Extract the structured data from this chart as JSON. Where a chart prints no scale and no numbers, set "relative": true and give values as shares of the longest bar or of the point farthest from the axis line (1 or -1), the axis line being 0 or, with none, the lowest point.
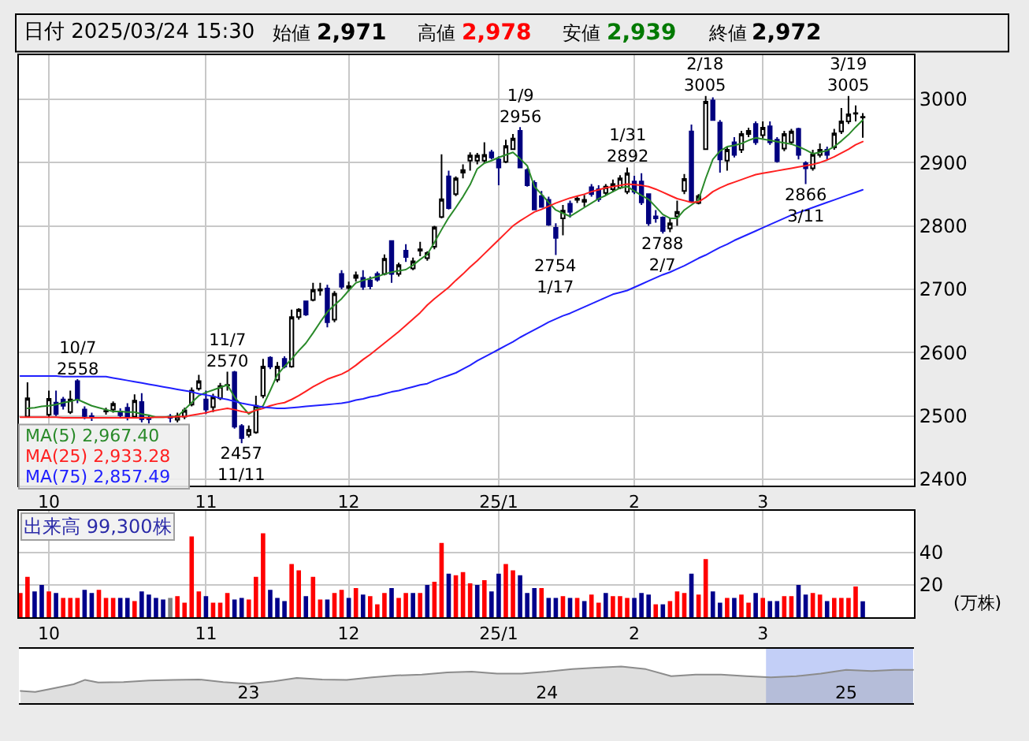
{
  "chart_data": [
    {
      "type": "other",
      "title": "日付 2025/03/24 15:30",
      "categories": [
        "始値",
        "高値",
        "安値",
        "終値"
      ],
      "values": [
        2971,
        2978,
        2939,
        2972
      ],
      "value_labels": [
        "2,971",
        "2,978",
        "2,939",
        "2,972"
      ],
      "colors": [
        "#000000",
        "#ff0000",
        "#007a00",
        "#000000"
      ]
    },
    {
      "type": "candlestick",
      "categories": [
        null,
        null,
        null,
        null,
        "10",
        null,
        null,
        null,
        null,
        null,
        null,
        null,
        null,
        null,
        null,
        null,
        null,
        null,
        null,
        null,
        null,
        null,
        null,
        null,
        null,
        null,
        "11",
        null,
        null,
        null,
        null,
        null,
        null,
        null,
        null,
        null,
        null,
        null,
        null,
        null,
        null,
        null,
        null,
        null,
        null,
        null,
        "12",
        null,
        null,
        null,
        null,
        null,
        null,
        null,
        null,
        null,
        null,
        null,
        null,
        null,
        null,
        null,
        null,
        null,
        null,
        null,
        null,
        "25/1",
        null,
        null,
        null,
        null,
        null,
        null,
        null,
        null,
        null,
        null,
        null,
        null,
        null,
        null,
        null,
        null,
        null,
        null,
        "2",
        null,
        null,
        null,
        null,
        null,
        null,
        null,
        null,
        null,
        null,
        null,
        null,
        null,
        null,
        null,
        null,
        null,
        "3",
        null,
        null,
        null,
        null,
        null,
        null,
        null,
        null,
        null,
        null,
        null,
        null,
        null,
        null
      ],
      "ohlc": [
        null,
        [
          2499,
          2553,
          2497,
          2528
        ],
        null,
        null,
        [
          2502,
          2540,
          2498,
          2527
        ],
        [
          2521,
          2540,
          2500,
          2503
        ],
        [
          2526,
          2530,
          2510,
          2516
        ],
        [
          2506,
          2540,
          2503,
          2526
        ],
        [
          2555,
          2558,
          2520,
          2526
        ],
        [
          2510,
          2515,
          2495,
          2500
        ],
        [
          2500,
          2505,
          2492,
          2499
        ],
        null,
        [
          2507,
          2513,
          2502,
          2508
        ],
        [
          2510,
          2523,
          2505,
          2519
        ],
        [
          2507,
          2512,
          2497,
          2501
        ],
        [
          2513,
          2520,
          2493,
          2497
        ],
        [
          2499,
          2534,
          2497,
          2524
        ],
        [
          2522,
          2536,
          2490,
          2495
        ],
        [
          2497,
          2502,
          2488,
          2495
        ],
        null,
        null,
        [
          2499,
          2503,
          2490,
          2497
        ],
        [
          2494,
          2505,
          2490,
          2500
        ],
        [
          2499,
          2513,
          2495,
          2509
        ],
        [
          2518,
          2545,
          2515,
          2540
        ],
        [
          2543,
          2565,
          2540,
          2555
        ],
        [
          2526,
          2540,
          2503,
          2510
        ],
        [
          2514,
          2535,
          2506,
          2530
        ],
        [
          2528,
          2552,
          2525,
          2547
        ],
        [
          2548,
          2570,
          2540,
          2549
        ],
        [
          2569,
          2571,
          2480,
          2483
        ],
        [
          2484,
          2487,
          2457,
          2465
        ],
        [
          2470,
          2485,
          2466,
          2478
        ],
        [
          2474,
          2532,
          2472,
          2516
        ],
        [
          2532,
          2590,
          2528,
          2578
        ],
        [
          2592,
          2594,
          2574,
          2578
        ],
        [
          2557,
          2585,
          2553,
          2578
        ],
        [
          2590,
          2594,
          2575,
          2578
        ],
        [
          2578,
          2668,
          2576,
          2656
        ],
        [
          2656,
          2670,
          2652,
          2668
        ],
        [
          2681,
          2682,
          2658,
          2660
        ],
        [
          2683,
          2710,
          2681,
          2699
        ],
        [
          2698,
          2710,
          2690,
          2700
        ],
        [
          2701,
          2707,
          2640,
          2648
        ],
        [
          2652,
          2697,
          2648,
          2693
        ],
        [
          2724,
          2730,
          2700,
          2704
        ],
        [
          2702,
          2712,
          2697,
          2705
        ],
        [
          2718,
          2728,
          2712,
          2722
        ],
        [
          2718,
          2730,
          2699,
          2704
        ],
        [
          2714,
          2720,
          2700,
          2705
        ],
        [
          2724,
          2728,
          2712,
          2715
        ],
        [
          2724,
          2755,
          2722,
          2748
        ],
        [
          2776,
          2777,
          2710,
          2724
        ],
        [
          2724,
          2742,
          2720,
          2738
        ],
        [
          2761,
          2771,
          2743,
          2751
        ],
        [
          2733,
          2750,
          2730,
          2744
        ],
        [
          2761,
          2775,
          2752,
          2763
        ],
        [
          2749,
          2760,
          2745,
          2757
        ],
        [
          2767,
          2800,
          2763,
          2798
        ],
        [
          2814,
          2913,
          2812,
          2842
        ],
        [
          2878,
          2887,
          2826,
          2828
        ],
        [
          2850,
          2878,
          2847,
          2875
        ],
        [
          2884,
          2897,
          2875,
          2888
        ],
        [
          2903,
          2916,
          2887,
          2911
        ],
        [
          2903,
          2915,
          2897,
          2911
        ],
        [
          2903,
          2932,
          2899,
          2912
        ],
        [
          2916,
          2920,
          2905,
          2908
        ],
        [
          2905,
          2910,
          2864,
          2892
        ],
        [
          2901,
          2936,
          2899,
          2926
        ],
        [
          2921,
          2945,
          2920,
          2938
        ],
        [
          2950,
          2956,
          2892,
          2892
        ],
        [
          2888,
          2891,
          2862,
          2864
        ],
        [
          2868,
          2872,
          2825,
          2826
        ],
        [
          2847,
          2855,
          2830,
          2830
        ],
        [
          2841,
          2846,
          2800,
          2802
        ],
        [
          2797,
          2804,
          2754,
          2781
        ],
        [
          2812,
          2833,
          2785,
          2824
        ],
        [
          2835,
          2840,
          2813,
          2822
        ],
        [
          2841,
          2848,
          2836,
          2843
        ],
        [
          2838,
          2849,
          2830,
          2841
        ],
        [
          2861,
          2866,
          2846,
          2850
        ],
        [
          2858,
          2864,
          2838,
          2842
        ],
        [
          2852,
          2866,
          2848,
          2862
        ],
        [
          2858,
          2873,
          2853,
          2866
        ],
        [
          2860,
          2880,
          2858,
          2875
        ],
        [
          2854,
          2892,
          2850,
          2883
        ],
        [
          2870,
          2879,
          2850,
          2854
        ],
        [
          2870,
          2883,
          2833,
          2837
        ],
        [
          2850,
          2850,
          2800,
          2804
        ],
        [
          2815,
          2825,
          2805,
          2812
        ],
        [
          2813,
          2815,
          2788,
          2792
        ],
        [
          2796,
          2812,
          2790,
          2804
        ],
        [
          2815,
          2840,
          2800,
          2822
        ],
        [
          2855,
          2882,
          2850,
          2874
        ],
        [
          2949,
          2960,
          2839,
          2839
        ],
        [
          2836,
          2850,
          2834,
          2847
        ],
        [
          2921,
          3005,
          2920,
          2996
        ],
        [
          2998,
          3003,
          2967,
          2967
        ],
        [
          2963,
          2967,
          2884,
          2905
        ],
        [
          2903,
          2924,
          2887,
          2920
        ],
        [
          2932,
          2940,
          2908,
          2912
        ],
        [
          2920,
          2950,
          2915,
          2945
        ],
        [
          2945,
          2955,
          2940,
          2950
        ],
        [
          2961,
          2965,
          2928,
          2932
        ],
        [
          2943,
          2965,
          2938,
          2955
        ],
        [
          2957,
          2965,
          2928,
          2932
        ],
        [
          2936,
          2940,
          2900,
          2902
        ],
        [
          2922,
          2950,
          2918,
          2945
        ],
        [
          2932,
          2953,
          2928,
          2949
        ],
        [
          2953,
          2955,
          2905,
          2912
        ],
        [
          2899,
          2902,
          2866,
          2891
        ],
        [
          2891,
          2920,
          2887,
          2913
        ],
        [
          2912,
          2930,
          2908,
          2920
        ],
        [
          2920,
          2925,
          2905,
          2912
        ],
        [
          2924,
          2953,
          2920,
          2946
        ],
        [
          2949,
          2986,
          2945,
          2965
        ],
        [
          2965,
          3005,
          2961,
          2976
        ],
        [
          2977,
          2990,
          2965,
          2978
        ],
        [
          2971,
          2978,
          2939,
          2972
        ]
      ],
      "series": [
        {
          "type": "line",
          "name": "MA(5) 2,967.40",
          "color": "#2a8a2a",
          "values": [
            null,
            2512,
            2513,
            2515,
            2516,
            2518,
            2521,
            2523,
            2526,
            2521,
            2516,
            2513,
            2510,
            2507,
            2507,
            2506,
            2506,
            2503,
            2501,
            2498,
            2498,
            2499,
            2499,
            2510,
            2521,
            2532,
            2537,
            2541,
            2545,
            2549,
            2530,
            2516,
            2503,
            2510,
            2516,
            2540,
            2565,
            2578,
            2590,
            2603,
            2615,
            2631,
            2648,
            2664,
            2675,
            2685,
            2698,
            2710,
            2714,
            2717,
            2720,
            2724,
            2727,
            2729,
            2731,
            2738,
            2747,
            2755,
            2774,
            2794,
            2813,
            2829,
            2846,
            2865,
            2890,
            2899,
            2903,
            2908,
            2912,
            2916,
            2906,
            2895,
            2862,
            2850,
            2837,
            2825,
            2820,
            2815,
            2822,
            2829,
            2836,
            2843,
            2848,
            2854,
            2860,
            2862,
            2855,
            2848,
            2842,
            2830,
            2818,
            2812,
            2812,
            2825,
            2833,
            2841,
            2875,
            2905,
            2918,
            2925,
            2927,
            2930,
            2935,
            2939,
            2937,
            2935,
            2933,
            2931,
            2929,
            2925,
            2920,
            2914,
            2916,
            2919,
            2925,
            2934,
            2944,
            2956,
            2967
          ]
        },
        {
          "type": "line",
          "name": "MA(25) 2,933.28",
          "color": "#ff2020",
          "values": [
            2498,
            2498,
            2498,
            2498,
            2498,
            2498,
            2497,
            2497,
            2497,
            2497,
            2497,
            2497,
            2497,
            2497,
            2497,
            2497,
            2497,
            2497,
            2497,
            2498,
            2498,
            2498,
            2499,
            2499,
            2501,
            2503,
            2505,
            2508,
            2510,
            2512,
            2510,
            2507,
            2505,
            2509,
            2512,
            2516,
            2519,
            2521,
            2526,
            2532,
            2539,
            2546,
            2552,
            2558,
            2562,
            2566,
            2572,
            2580,
            2589,
            2597,
            2606,
            2615,
            2624,
            2633,
            2643,
            2653,
            2663,
            2675,
            2685,
            2694,
            2703,
            2714,
            2724,
            2735,
            2745,
            2756,
            2767,
            2778,
            2789,
            2800,
            2808,
            2815,
            2822,
            2826,
            2831,
            2836,
            2840,
            2844,
            2847,
            2850,
            2854,
            2857,
            2860,
            2862,
            2864,
            2866,
            2865,
            2864,
            2862,
            2858,
            2853,
            2848,
            2843,
            2840,
            2837,
            2838,
            2845,
            2854,
            2860,
            2865,
            2869,
            2873,
            2877,
            2881,
            2883,
            2885,
            2887,
            2889,
            2891,
            2893,
            2895,
            2897,
            2900,
            2904,
            2909,
            2915,
            2921,
            2928,
            2933
          ]
        },
        {
          "type": "line",
          "name": "MA(75) 2,857.49",
          "color": "#2020ff",
          "values": [
            2563,
            2563,
            2563,
            2563,
            2563,
            2563,
            2562,
            2562,
            2562,
            2562,
            2562,
            2562,
            2562,
            2560,
            2558,
            2556,
            2554,
            2552,
            2550,
            2548,
            2546,
            2544,
            2542,
            2540,
            2538,
            2535,
            2533,
            2531,
            2528,
            2526,
            2523,
            2520,
            2518,
            2516,
            2514,
            2513,
            2512,
            2512,
            2513,
            2514,
            2515,
            2516,
            2517,
            2518,
            2519,
            2520,
            2522,
            2525,
            2527,
            2530,
            2532,
            2535,
            2538,
            2540,
            2543,
            2546,
            2549,
            2551,
            2556,
            2560,
            2564,
            2568,
            2574,
            2580,
            2587,
            2593,
            2599,
            2605,
            2611,
            2617,
            2624,
            2630,
            2636,
            2642,
            2648,
            2653,
            2658,
            2662,
            2667,
            2672,
            2677,
            2682,
            2687,
            2692,
            2695,
            2698,
            2703,
            2708,
            2713,
            2718,
            2723,
            2727,
            2732,
            2737,
            2743,
            2749,
            2754,
            2760,
            2766,
            2771,
            2777,
            2782,
            2787,
            2792,
            2797,
            2802,
            2807,
            2812,
            2817,
            2821,
            2825,
            2829,
            2833,
            2837,
            2841,
            2845,
            2849,
            2853,
            2857
          ]
        }
      ],
      "ylim": [
        2390,
        3070
      ],
      "yticks": [
        2400,
        2500,
        2600,
        2700,
        2800,
        2900,
        3000
      ],
      "grid": true,
      "legend": "bottom left",
      "annotations": [
        {
          "text": "10/7\n2558",
          "y": 2558
        },
        {
          "text": "11/7\n2570",
          "y": 2570
        },
        {
          "text": "2457\n11/11",
          "y": 2457
        },
        {
          "text": "1/9\n2956",
          "y": 2956
        },
        {
          "text": "2754\n1/17",
          "y": 2754
        },
        {
          "text": "1/31\n2892",
          "y": 2892
        },
        {
          "text": "2788\n2/7",
          "y": 2788
        },
        {
          "text": "2/18\n3005",
          "y": 3005
        },
        {
          "text": "2866\n3/11",
          "y": 2866
        },
        {
          "text": "3/19\n3005",
          "y": 3005
        }
      ]
    },
    {
      "type": "bar",
      "title": "出来高 99,300株",
      "ylabel": "(万株)",
      "categories": [
        null,
        null,
        null,
        null,
        "10",
        null,
        null,
        null,
        null,
        null,
        null,
        null,
        null,
        null,
        null,
        null,
        null,
        null,
        null,
        null,
        null,
        null,
        null,
        null,
        null,
        null,
        "11",
        null,
        null,
        null,
        null,
        null,
        null,
        null,
        null,
        null,
        null,
        null,
        null,
        null,
        null,
        null,
        null,
        null,
        null,
        null,
        "12",
        null,
        null,
        null,
        null,
        null,
        null,
        null,
        null,
        null,
        null,
        null,
        null,
        null,
        null,
        null,
        null,
        null,
        null,
        null,
        null,
        "25/1",
        null,
        null,
        null,
        null,
        null,
        null,
        null,
        null,
        null,
        null,
        null,
        null,
        null,
        null,
        null,
        null,
        null,
        null,
        "2",
        null,
        null,
        null,
        null,
        null,
        null,
        null,
        null,
        null,
        null,
        null,
        null,
        null,
        null,
        null,
        null,
        null,
        "3",
        null,
        null,
        null,
        null,
        null,
        null,
        null,
        null,
        null,
        null,
        null,
        null,
        null,
        null
      ],
      "values": [
        15,
        25,
        16,
        20,
        16,
        15,
        12,
        12,
        12,
        17,
        15,
        17,
        12,
        12,
        12,
        12,
        10,
        16,
        14,
        12,
        11,
        12,
        13,
        9,
        50,
        16,
        13,
        9,
        9,
        15,
        11,
        12,
        11,
        25,
        52,
        17,
        12,
        10,
        33,
        29,
        13,
        25,
        11,
        11,
        15,
        17,
        12,
        18,
        14,
        13,
        8,
        15,
        18,
        12,
        15,
        15,
        15,
        20,
        22,
        46,
        27,
        26,
        28,
        21,
        20,
        23,
        16,
        27,
        33,
        29,
        26,
        15,
        18,
        18,
        12,
        12,
        13,
        12,
        12,
        10,
        14,
        9,
        15,
        13,
        13,
        12,
        12,
        15,
        14,
        8,
        8,
        10,
        16,
        15,
        27,
        14,
        36,
        16,
        9,
        12,
        12,
        14,
        9,
        15,
        12,
        10,
        10,
        13,
        13,
        20,
        14,
        15,
        14,
        10,
        12,
        12,
        12,
        19,
        9.93
      ],
      "colors": [
        "#ff0000",
        "#ff0000",
        "#00008b",
        "#00008b",
        "#ff0000",
        "#00008b",
        "#ff0000",
        "#ff0000",
        "#ff0000",
        "#00008b",
        "#00008b",
        "#ff0000",
        "#ff0000",
        "#ff0000",
        "#00008b",
        "#00008b",
        "#ff0000",
        "#00008b",
        "#00008b",
        "#00008b",
        "#00008b",
        "#808080",
        "#ff0000",
        "#ff0000",
        "#ff0000",
        "#ff0000",
        "#00008b",
        "#ff0000",
        "#ff0000",
        "#ff0000",
        "#00008b",
        "#00008b",
        "#ff0000",
        "#ff0000",
        "#ff0000",
        "#00008b",
        "#00008b",
        "#00008b",
        "#ff0000",
        "#ff0000",
        "#00008b",
        "#ff0000",
        "#ff0000",
        "#00008b",
        "#ff0000",
        "#ff0000",
        "#00008b",
        "#ff0000",
        "#00008b",
        "#ff0000",
        "#ff0000",
        "#ff0000",
        "#00008b",
        "#ff0000",
        "#ff0000",
        "#00008b",
        "#ff0000",
        "#00008b",
        "#ff0000",
        "#ff0000",
        "#00008b",
        "#ff0000",
        "#ff0000",
        "#ff0000",
        "#00008b",
        "#ff0000",
        "#00008b",
        "#00008b",
        "#ff0000",
        "#ff0000",
        "#00008b",
        "#00008b",
        "#00008b",
        "#ff0000",
        "#00008b",
        "#00008b",
        "#ff0000",
        "#00008b",
        "#ff0000",
        "#00008b",
        "#ff0000",
        "#ff0000",
        "#00008b",
        "#ff0000",
        "#ff0000",
        "#ff0000",
        "#00008b",
        "#00008b",
        "#00008b",
        "#ff0000",
        "#00008b",
        "#ff0000",
        "#ff0000",
        "#ff0000",
        "#00008b",
        "#ff0000",
        "#ff0000",
        "#00008b",
        "#00008b",
        "#ff0000",
        "#00008b",
        "#ff0000",
        "#ff0000",
        "#00008b",
        "#ff0000",
        "#00008b",
        "#00008b",
        "#ff0000",
        "#ff0000",
        "#00008b",
        "#00008b",
        "#ff0000",
        "#ff0000",
        "#00008b",
        "#ff0000",
        "#ff0000",
        "#ff0000",
        "#ff0000",
        "#00008b"
      ],
      "ylim": [
        0,
        66
      ],
      "yticks": [
        20,
        40
      ],
      "grid": true
    },
    {
      "type": "area",
      "relative": true,
      "color": "#8c8c8c",
      "tick_labels": "x",
      "x": [
        "2022-03-28",
        "2022-04-15",
        "2022-05-01",
        "2022-06-01",
        "2022-06-15",
        "2022-07-01",
        "2022-08-01",
        "2022-09-01",
        "2022-10-01",
        "2022-11-01",
        "2022-12-01",
        "2023-01-01",
        "2023-02-01",
        "2023-03-01",
        "2023-04-01",
        "2023-05-01",
        "2023-06-01",
        "2023-07-01",
        "2023-08-01",
        "2023-09-01",
        "2023-10-01",
        "2023-11-01",
        "2023-12-01",
        "2024-01-01",
        "2024-02-01",
        "2024-03-01",
        "2024-04-01",
        "2024-05-01",
        "2024-06-01",
        "2024-07-01",
        "2024-08-01",
        "2024-09-01",
        "2024-10-01",
        "2024-11-01",
        "2024-12-01",
        "2025-01-01",
        "2025-02-01",
        "2025-03-01",
        "2025-03-24"
      ],
      "values": [
        0.34,
        0.31,
        0.38,
        0.52,
        0.64,
        0.57,
        0.58,
        0.62,
        0.64,
        0.65,
        0.58,
        0.53,
        0.6,
        0.69,
        0.65,
        0.64,
        0.71,
        0.76,
        0.78,
        0.84,
        0.86,
        0.81,
        0.81,
        0.86,
        0.93,
        0.97,
        1,
        0.93,
        0.74,
        0.78,
        0.78,
        0.74,
        0.71,
        0.74,
        0.81,
        0.91,
        0.88,
        0.91,
        0.91
      ],
      "xlim": [
        "2022-03-26",
        "2025-03-25"
      ],
      "xticks": [
        {
          "value": "2023-01-01",
          "label": "23"
        },
        {
          "value": "2024-01-01",
          "label": "24"
        },
        {
          "value": "2025-01-01",
          "label": "25"
        }
      ],
      "bands": [
        {
          "axis": "x",
          "from": "2024-09-25",
          "to": "2025-03-24",
          "color": "#b4c3f5"
        }
      ]
    }
  ]
}
